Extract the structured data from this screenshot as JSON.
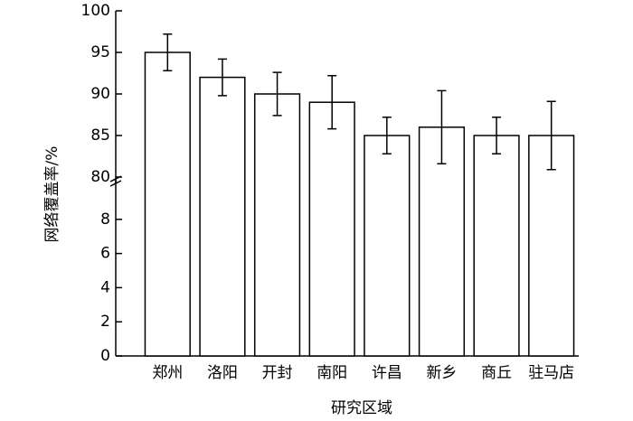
{
  "chart_data": {
    "type": "bar",
    "xlabel": "研究区域",
    "ylabel": "网络覆盖率/%",
    "categories": [
      "郑州",
      "洛阳",
      "开封",
      "南阳",
      "许昌",
      "新乡",
      "商丘",
      "驻马店"
    ],
    "values": [
      95,
      92,
      90,
      89,
      85,
      86,
      85,
      85
    ],
    "errors": [
      2.2,
      2.2,
      2.6,
      3.2,
      2.2,
      4.4,
      2.2,
      4.1
    ],
    "color": "#ffffff",
    "ylim": [
      0,
      100
    ],
    "axis_break": [
      10,
      80
    ],
    "yticks": [
      0,
      2,
      4,
      6,
      8,
      80,
      85,
      90,
      95,
      100
    ]
  }
}
